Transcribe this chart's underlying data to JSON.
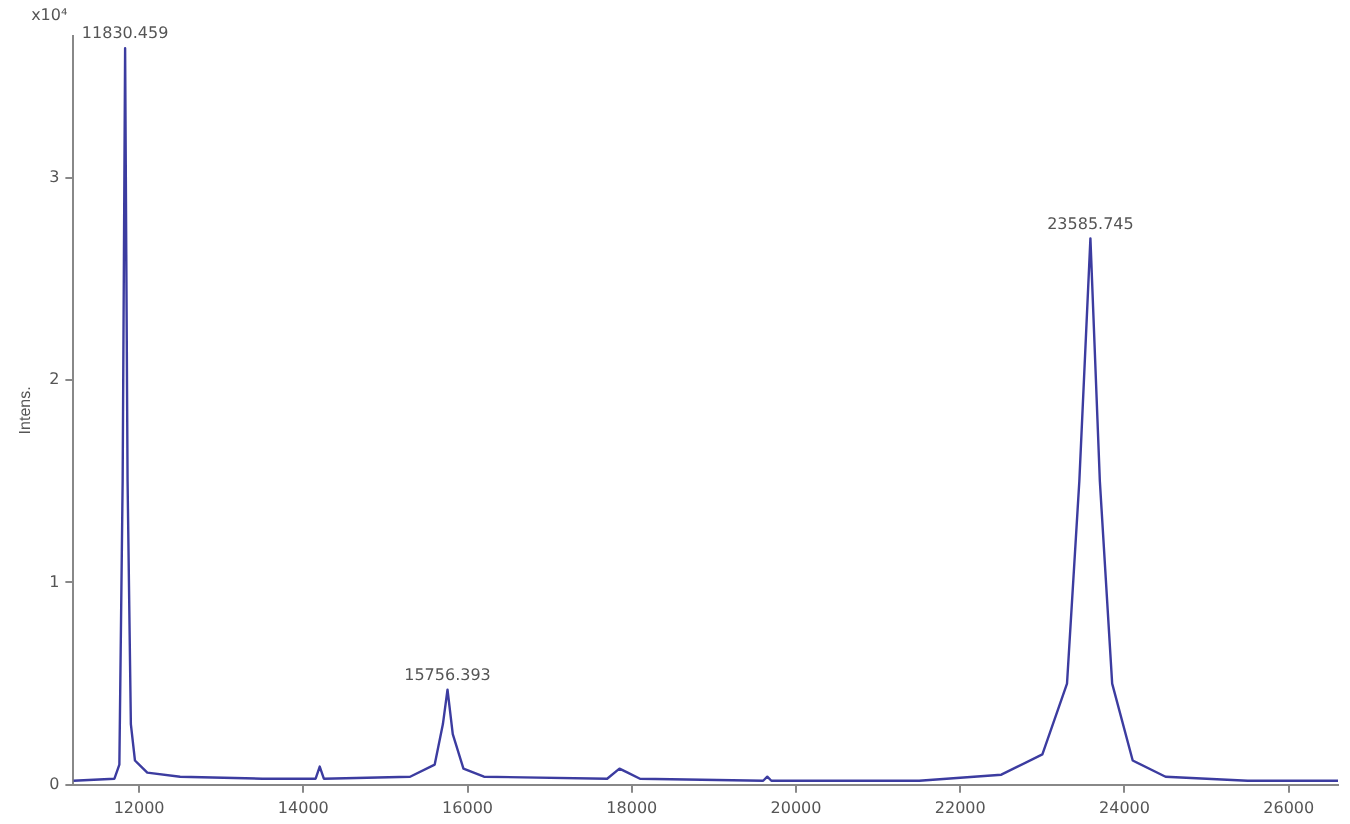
{
  "chart_data": {
    "type": "line",
    "ylabel": "Intens.",
    "grid": false,
    "legend": false,
    "marker": "none",
    "line_style": "solid",
    "xlim": [
      11200,
      26600
    ],
    "xticks": [
      12000,
      14000,
      16000,
      18000,
      20000,
      22000,
      24000,
      26000
    ],
    "ylim": [
      0,
      3.7
    ],
    "yticks": [
      0,
      1,
      2,
      3
    ],
    "annotations": [
      "x10⁴",
      {
        "text": "11830.459",
        "x": 11830,
        "y": 3.64
      },
      {
        "text": "15756.393",
        "x": 15756,
        "y": 0.47
      },
      {
        "text": "23585.745",
        "x": 23585,
        "y": 2.7
      }
    ],
    "series": [
      {
        "color": "#3c3ca0",
        "x": [
          11200,
          11700,
          11760,
          11800,
          11830,
          11860,
          11900,
          11950,
          12100,
          12500,
          13500,
          14150,
          14200,
          14250,
          15300,
          15600,
          15700,
          15756,
          15820,
          15950,
          16200,
          17700,
          17850,
          17950,
          18100,
          19600,
          19650,
          19700,
          21500,
          22500,
          23000,
          23300,
          23450,
          23585,
          23700,
          23850,
          24100,
          24500,
          25500,
          26600
        ],
        "values": [
          0.02,
          0.03,
          0.1,
          1.5,
          3.64,
          1.5,
          0.3,
          0.12,
          0.06,
          0.04,
          0.03,
          0.03,
          0.09,
          0.03,
          0.04,
          0.1,
          0.3,
          0.47,
          0.25,
          0.08,
          0.04,
          0.03,
          0.08,
          0.06,
          0.03,
          0.02,
          0.04,
          0.02,
          0.02,
          0.05,
          0.15,
          0.5,
          1.5,
          2.7,
          1.5,
          0.5,
          0.12,
          0.04,
          0.02,
          0.02
        ]
      }
    ]
  }
}
